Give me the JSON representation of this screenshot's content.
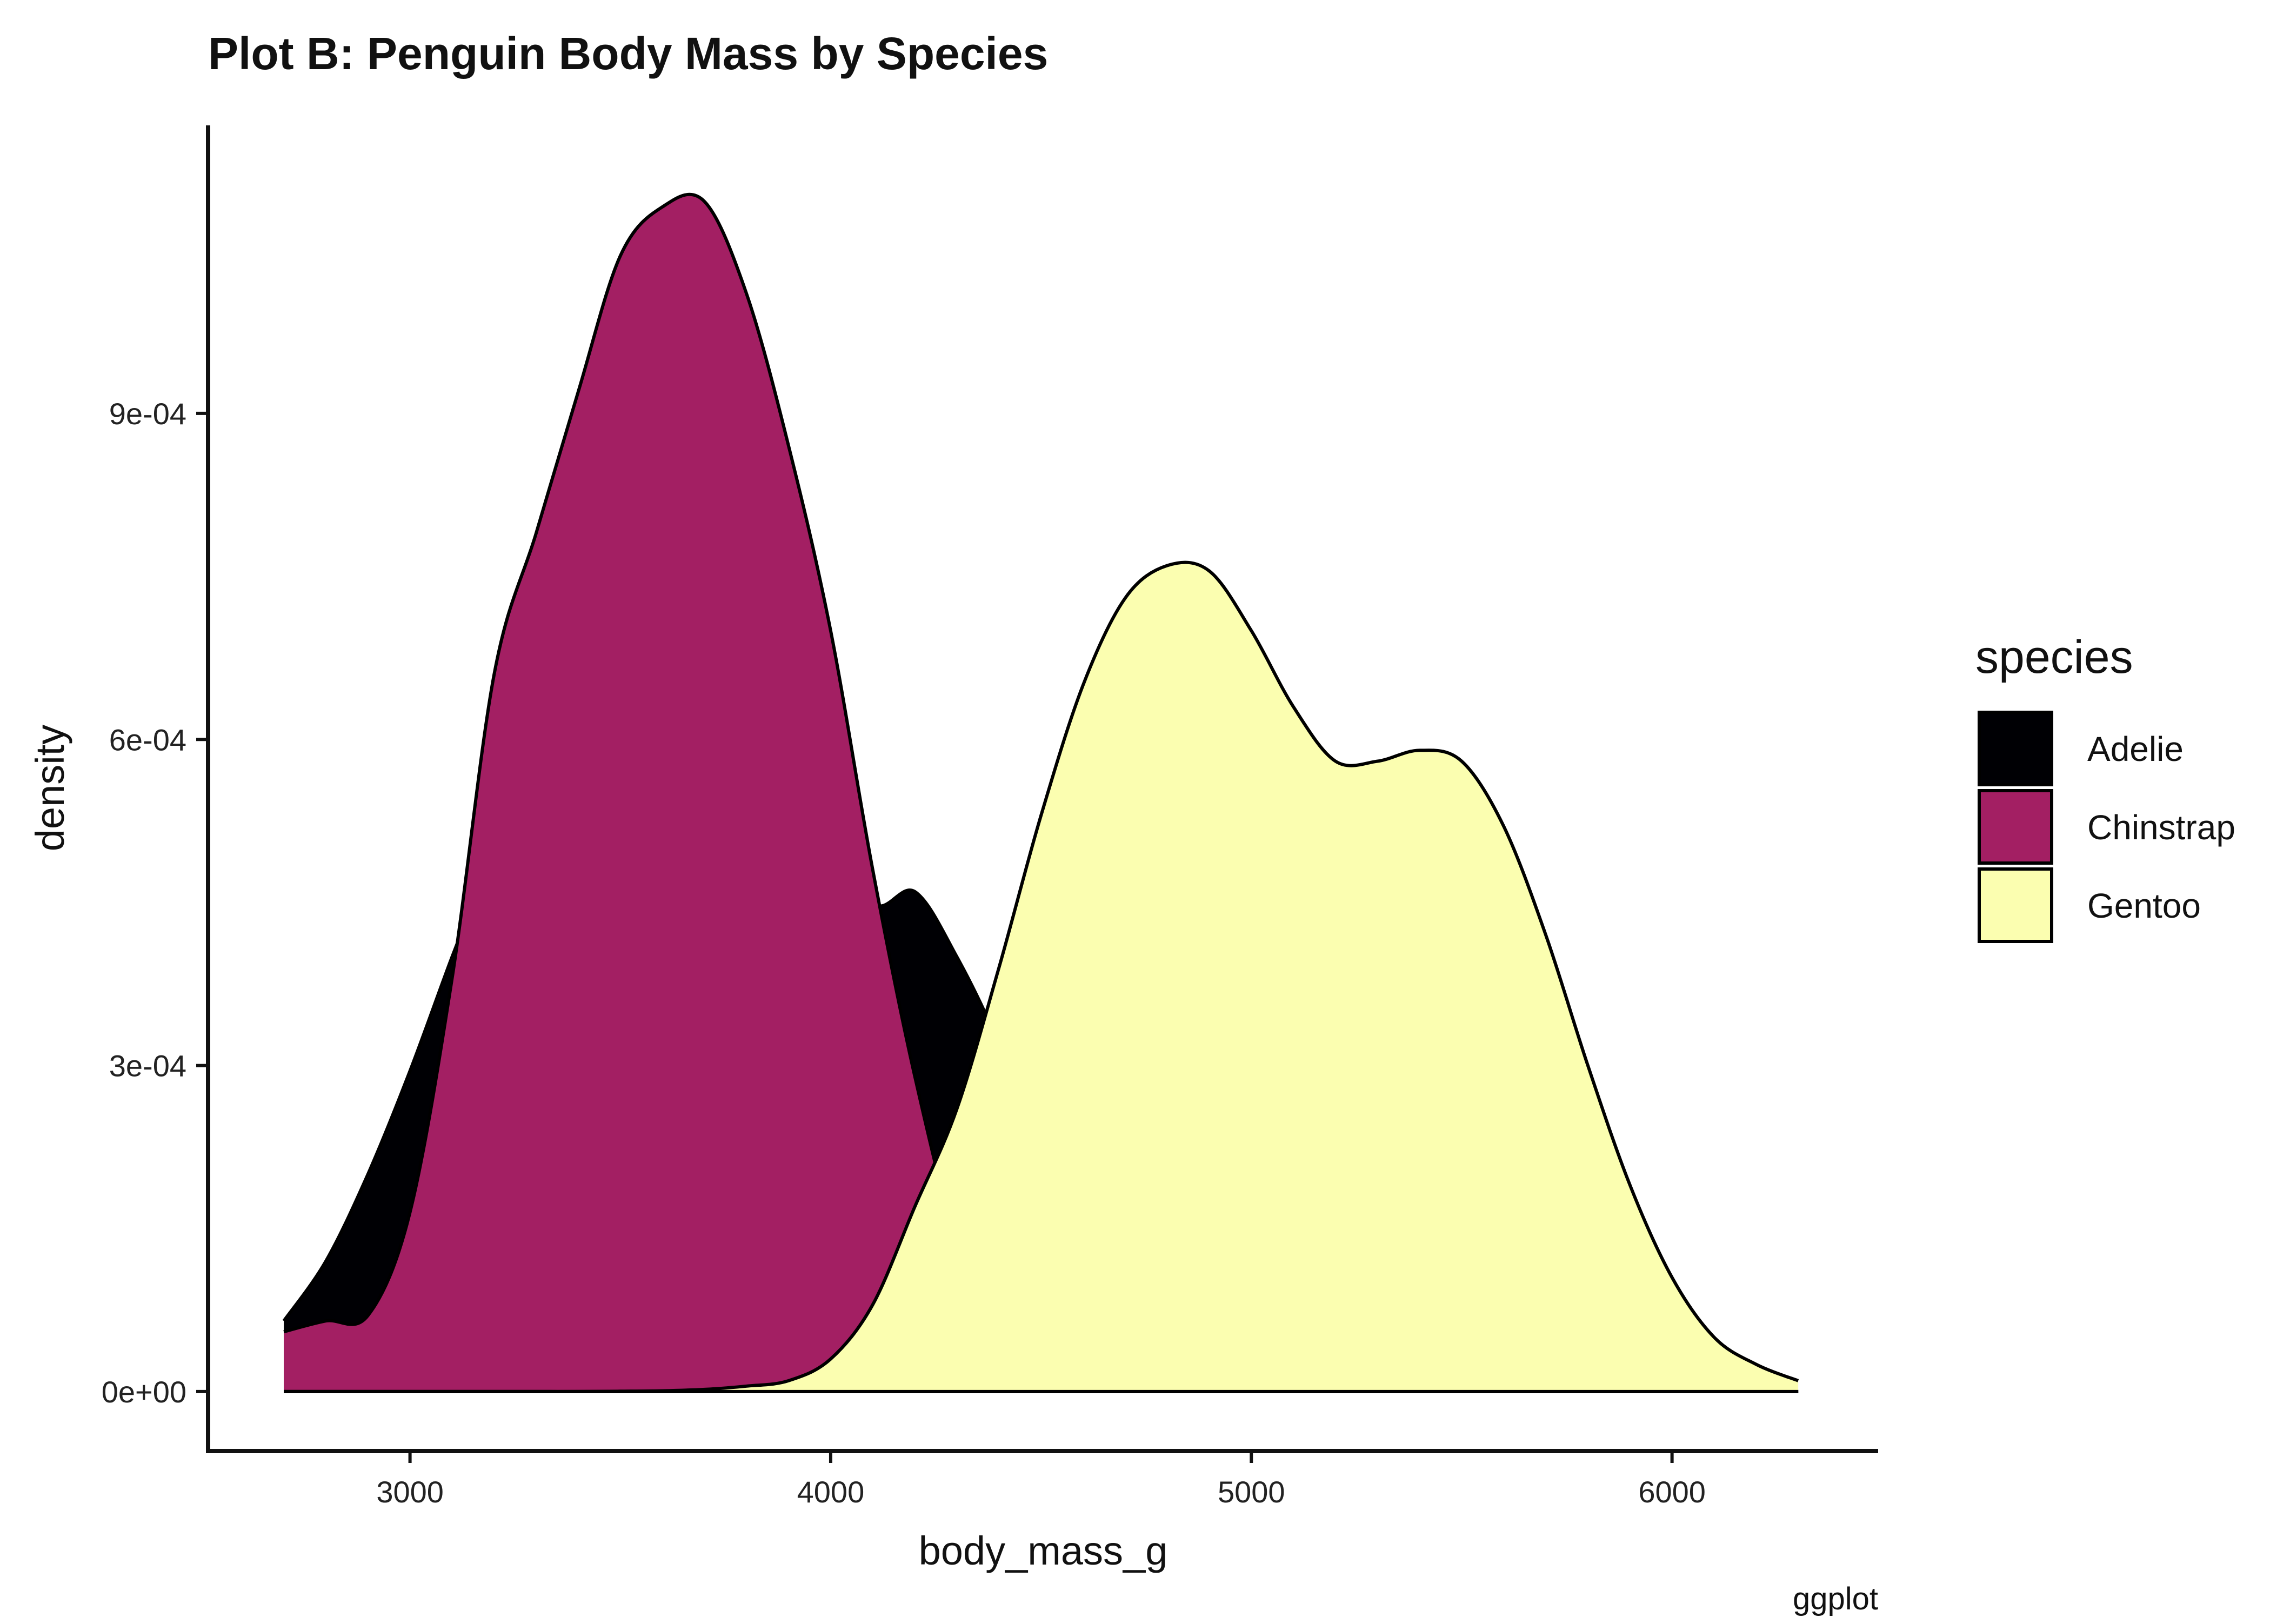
{
  "chart_data": {
    "type": "area",
    "title": "Plot B: Penguin Body Mass by Species",
    "xlabel": "body_mass_g",
    "ylabel": "density",
    "caption": "ggplot",
    "xlim": [
      2520,
      6490
    ],
    "ylim": [
      -5.475e-05,
      0.001165
    ],
    "x_ticks": [
      {
        "value": 3000,
        "label": "3000"
      },
      {
        "value": 4000,
        "label": "4000"
      },
      {
        "value": 5000,
        "label": "5000"
      },
      {
        "value": 6000,
        "label": "6000"
      }
    ],
    "y_ticks": [
      {
        "value": 0,
        "label": "0e+00"
      },
      {
        "value": 0.0003,
        "label": "3e-04"
      },
      {
        "value": 0.0006,
        "label": "6e-04"
      },
      {
        "value": 0.0009,
        "label": "9e-04"
      }
    ],
    "grid": false,
    "legend": {
      "title": "species",
      "position": "right",
      "entries": [
        {
          "label": "Adelie",
          "color": "#000004"
        },
        {
          "label": "Chinstrap",
          "color": "#A31F63"
        },
        {
          "label": "Gentoo",
          "color": "#FBFEB0"
        }
      ]
    },
    "series": [
      {
        "name": "Adelie",
        "color": "#000004",
        "x": [
          2700,
          2800,
          2900,
          3000,
          3100,
          3200,
          3300,
          3400,
          3500,
          3600,
          3700,
          3800,
          3900,
          4000,
          4100,
          4200,
          4300,
          4400,
          4500,
          4600,
          4700,
          4800,
          4900,
          5000,
          5100,
          5200,
          5300,
          5400,
          5500,
          5600,
          5700,
          5800,
          5900,
          6000,
          6100,
          6200,
          6300
        ],
        "y": [
          6.5e-05,
          0.00012,
          0.0002,
          0.000295,
          0.0004,
          0.0005,
          0.0006,
          0.0007,
          0.00079,
          0.00088,
          0.00092,
          0.00087,
          0.0007,
          0.00054,
          0.00045,
          0.00046,
          0.0004,
          0.00032,
          0.00022,
          0.00013,
          7e-05,
          3.5e-05,
          1.5e-05,
          7e-06,
          3e-06,
          1e-06,
          3e-07,
          1e-07,
          0,
          0,
          0,
          0,
          0,
          0,
          0,
          0,
          0
        ]
      },
      {
        "name": "Chinstrap",
        "color": "#A31F63",
        "x": [
          2700,
          2800,
          2900,
          3000,
          3100,
          3200,
          3300,
          3400,
          3500,
          3600,
          3700,
          3800,
          3900,
          4000,
          4100,
          4200,
          4300,
          4400,
          4500,
          4600,
          4700,
          4800,
          4900,
          5000,
          5100,
          5200,
          5300,
          5400,
          5500,
          5600,
          5700,
          5800,
          5900,
          6000,
          6100,
          6200,
          6300
        ],
        "y": [
          5.5e-05,
          6.5e-05,
          7e-05,
          0.000165,
          0.00038,
          0.00066,
          0.00079,
          0.00092,
          0.001045,
          0.00109,
          0.001095,
          0.00101,
          0.00087,
          0.0007,
          0.00048,
          0.00029,
          0.00014,
          7e-05,
          4e-05,
          2e-05,
          1e-05,
          5e-06,
          2e-06,
          1e-06,
          0,
          0,
          0,
          0,
          0,
          0,
          0,
          0,
          0,
          0,
          0,
          0,
          0
        ]
      },
      {
        "name": "Gentoo",
        "color": "#FBFEB0",
        "x": [
          2700,
          2800,
          2900,
          3000,
          3100,
          3200,
          3300,
          3400,
          3500,
          3600,
          3700,
          3800,
          3900,
          4000,
          4100,
          4200,
          4300,
          4400,
          4500,
          4600,
          4700,
          4800,
          4900,
          5000,
          5100,
          5200,
          5300,
          5400,
          5500,
          5600,
          5700,
          5800,
          5900,
          6000,
          6100,
          6200,
          6300
        ],
        "y": [
          0,
          0,
          0,
          0,
          0,
          0,
          0,
          0,
          3e-07,
          7e-07,
          2e-06,
          5e-06,
          1e-05,
          3e-05,
          8e-05,
          0.00017,
          0.00026,
          0.00039,
          0.00053,
          0.00065,
          0.00073,
          0.00076,
          0.000755,
          0.0007,
          0.00063,
          0.00058,
          0.00058,
          0.00059,
          0.00058,
          0.00052,
          0.00042,
          0.0003,
          0.00019,
          0.000105,
          5e-05,
          2.5e-05,
          1e-05
        ]
      }
    ]
  }
}
